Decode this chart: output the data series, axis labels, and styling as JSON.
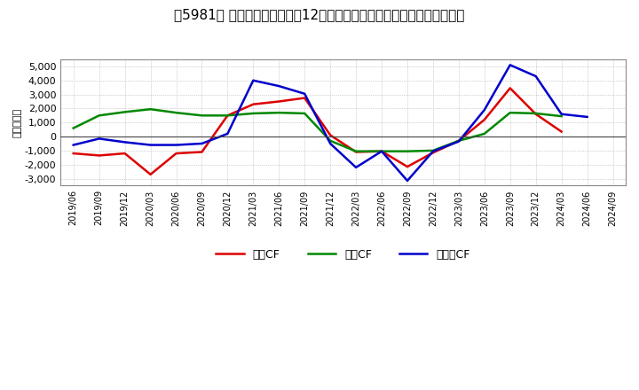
{
  "title": "々5981〆 キャッシュフローの12か月移動合計の対前年同期増減額の推移",
  "title_bracket": "々5981〆",
  "ylabel": "（百万円）",
  "background_color": "#ffffff",
  "plot_bg_color": "#ffffff",
  "grid_color": "#aaaaaa",
  "xlabels": [
    "2019/06",
    "2019/09",
    "2019/12",
    "2020/03",
    "2020/06",
    "2020/09",
    "2020/12",
    "2021/03",
    "2021/06",
    "2021/09",
    "2021/12",
    "2022/03",
    "2022/06",
    "2022/09",
    "2022/12",
    "2023/03",
    "2023/06",
    "2023/09",
    "2023/12",
    "2024/03",
    "2024/06",
    "2024/09"
  ],
  "operating_cf": [
    -1200,
    -1350,
    -1200,
    -2700,
    -1200,
    -1100,
    1500,
    2300,
    2500,
    2750,
    100,
    -1100,
    -1050,
    -2150,
    -1150,
    -300,
    1200,
    3450,
    1600,
    350,
    null,
    null
  ],
  "investing_cf": [
    600,
    1500,
    1750,
    1950,
    1700,
    1500,
    1500,
    1650,
    1700,
    1650,
    -300,
    -1050,
    -1050,
    -1050,
    -1000,
    -300,
    200,
    1700,
    1650,
    1450,
    null,
    null
  ],
  "free_cf": [
    -600,
    -150,
    -400,
    -600,
    -600,
    -500,
    200,
    4000,
    3600,
    3050,
    -500,
    -2200,
    -1050,
    -3150,
    -1050,
    -350,
    1900,
    5100,
    4300,
    1600,
    1400,
    null
  ],
  "operating_color": "#dd0000",
  "investing_color": "#008800",
  "free_color": "#0000cc",
  "ylim": [
    -3500,
    5500
  ],
  "yticks": [
    -3000,
    -2000,
    -1000,
    0,
    1000,
    2000,
    3000,
    4000,
    5000
  ],
  "line_width": 1.8,
  "title_fontsize": 11,
  "legend_labels": [
    "営業CF",
    "投資CF",
    "フリーCF"
  ]
}
